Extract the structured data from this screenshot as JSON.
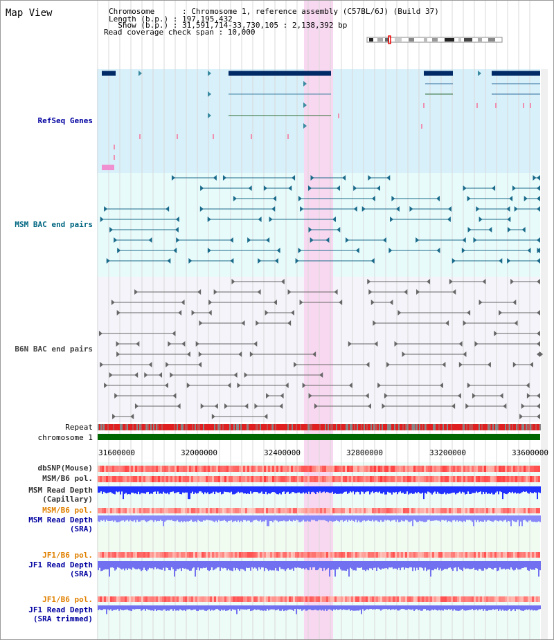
{
  "page": {
    "title": "Map View"
  },
  "header": {
    "chromosome_line": "Chromosome      : Chromosome 1, reference assembly (C57BL/6J) (Build 37)",
    "length_line": "Length (b.p.) : 197,195,432",
    "show_line": "  Show (b.p.) : 31,591,714-33,730,105 : 2,138,392 bp",
    "coverage_line": "Read coverage check span : 10,000"
  },
  "tracks": {
    "refseq": "RefSeq Genes",
    "msm_bac": "MSM BAC end pairs",
    "b6n_bac": "B6N BAC end pairs",
    "repeat": "Repeat",
    "chromosome": "chromosome 1",
    "dbsnp": "dbSNP(Mouse)",
    "msm_b6_pol": "MSM/B6 pol.",
    "msm_depth_cap_1": "MSM Read Depth",
    "msm_depth_cap_2": "(Capillary)",
    "msm_b6_pol2": "MSM/B6 pol.",
    "msm_depth_sra_1": "MSM Read Depth",
    "msm_depth_sra_2": "(SRA)",
    "jf1_pol": "JF1/B6 pol.",
    "jf1_depth_1": "JF1 Read Depth",
    "jf1_depth_2": "(SRA)",
    "jf1_pol2": "JF1/B6 pol.",
    "jf1_trim_1": "JF1 Read Depth",
    "jf1_trim_2": "(SRA trimmed)"
  },
  "axis": {
    "ticks": [
      "31600000",
      "32000000",
      "32400000",
      "32800000",
      "33200000",
      "33600000"
    ]
  },
  "colors": {
    "highlight": "#f8d8f0",
    "refseq_bg": "#d8f0fa",
    "msm_bg": "#e8fbfb",
    "b6n_bg": "#f4f4fa",
    "gene": "#002a66",
    "chromosome": "#006600",
    "label_msm": "#006680",
    "label_blue": "#0000a0",
    "label_orange": "#e08000"
  }
}
